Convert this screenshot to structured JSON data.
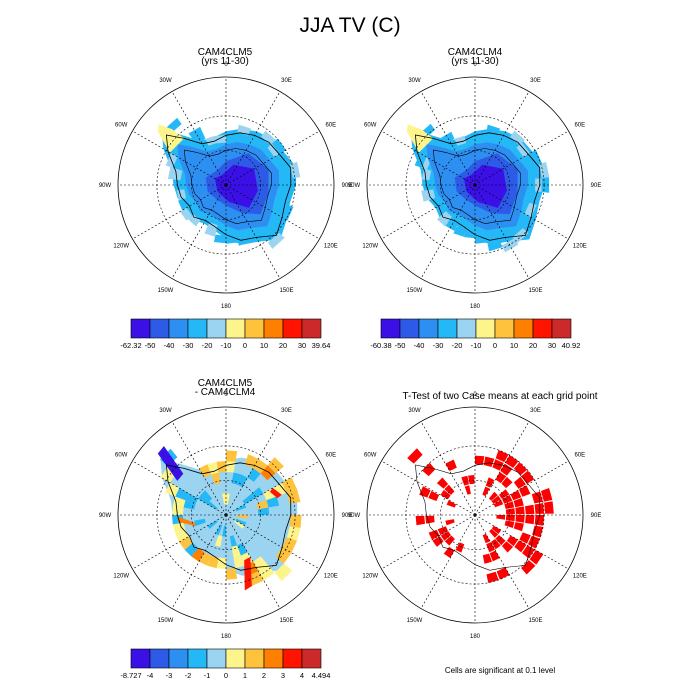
{
  "figure": {
    "title": "JJA TV (C)",
    "significance_note": "Cells are significant at 0.1 level"
  },
  "chart_data": [
    {
      "type": "heatmap",
      "projection": "south-polar-stereographic",
      "title": "CAM4CLM5",
      "subtitle": "(yrs 11-30)",
      "longitude_labels": [
        "0",
        "30E",
        "60E",
        "90E",
        "120E",
        "150E",
        "180",
        "150W",
        "120W",
        "90W",
        "60W",
        "30W"
      ],
      "contour_levels": [
        -50,
        -40,
        -30,
        -20,
        -10,
        0,
        10,
        20,
        30
      ],
      "colorbar_labels": [
        "-62.32",
        "-50",
        "-40",
        "-30",
        "-20",
        "-10",
        "0",
        "10",
        "20",
        "30",
        "39.64"
      ],
      "colors": [
        "#3a10e6",
        "#2d5ae6",
        "#2e8ff2",
        "#25b8f6",
        "#9bd4f0",
        "#fdf58c",
        "#ffc23d",
        "#ff7f00",
        "#ff1400",
        "#cc2a2a"
      ],
      "min": -62.32,
      "max": 39.64
    },
    {
      "type": "heatmap",
      "projection": "south-polar-stereographic",
      "title": "CAM4CLM4",
      "subtitle": "(yrs 11-30)",
      "longitude_labels": [
        "0",
        "30E",
        "60E",
        "90E",
        "120E",
        "150E",
        "180",
        "150W",
        "120W",
        "90W",
        "60W",
        "30W"
      ],
      "contour_levels": [
        -50,
        -40,
        -30,
        -20,
        -10,
        0,
        10,
        20,
        30
      ],
      "colorbar_labels": [
        "-60.38",
        "-50",
        "-40",
        "-30",
        "-20",
        "-10",
        "0",
        "10",
        "20",
        "30",
        "40.92"
      ],
      "colors": [
        "#3a10e6",
        "#2d5ae6",
        "#2e8ff2",
        "#25b8f6",
        "#9bd4f0",
        "#fdf58c",
        "#ffc23d",
        "#ff7f00",
        "#ff1400",
        "#cc2a2a"
      ],
      "min": -60.38,
      "max": 40.92
    },
    {
      "type": "heatmap",
      "projection": "south-polar-stereographic",
      "title": "CAM4CLM5",
      "subtitle": "- CAM4CLM4",
      "longitude_labels": [
        "0",
        "30E",
        "60E",
        "90E",
        "120E",
        "150E",
        "180",
        "150W",
        "120W",
        "90W",
        "60W",
        "30W"
      ],
      "contour_levels": [
        -4,
        -3,
        -2,
        -1,
        0,
        1,
        2,
        3,
        4
      ],
      "colorbar_labels": [
        "-8.727",
        "-4",
        "-3",
        "-2",
        "-1",
        "0",
        "1",
        "2",
        "3",
        "4",
        "4.494"
      ],
      "colors": [
        "#3a10e6",
        "#2d5ae6",
        "#2e8ff2",
        "#25b8f6",
        "#9bd4f0",
        "#fdf58c",
        "#ffc23d",
        "#ff7f00",
        "#ff1400",
        "#cc2a2a"
      ],
      "min": -8.727,
      "max": 4.494
    },
    {
      "type": "heatmap",
      "projection": "south-polar-stereographic",
      "title": "T-Test of two Case means at each grid point",
      "subtitle": "",
      "longitude_labels": [
        "0",
        "30E",
        "60E",
        "90E",
        "120E",
        "150E",
        "180",
        "150W",
        "120W",
        "90W",
        "60W",
        "30W"
      ],
      "significance_level": 0.1,
      "colors": [
        "#ff0000"
      ]
    }
  ]
}
